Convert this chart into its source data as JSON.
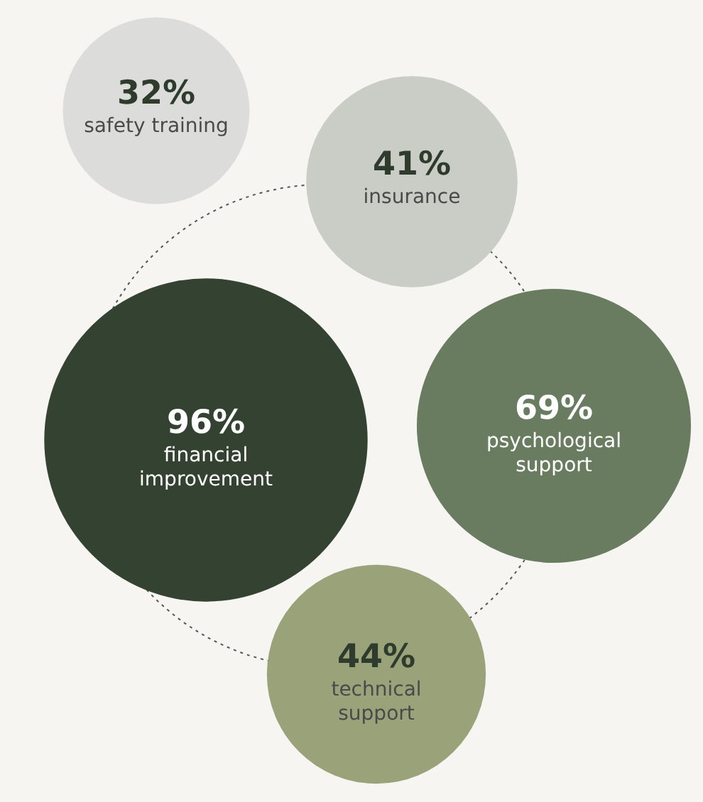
{
  "chart_data": {
    "type": "other",
    "categories": [
      "safety training",
      "insurance",
      "financial improvement",
      "psychological support",
      "technical support"
    ],
    "values": [
      32,
      41,
      96,
      69,
      44
    ],
    "value_labels": [
      "32%",
      "41%",
      "96%",
      "69%",
      "44%"
    ],
    "colors": [
      "#dcdddb",
      "#c9cdc6",
      "#344331",
      "#6a7c60",
      "#9aa27a"
    ]
  }
}
